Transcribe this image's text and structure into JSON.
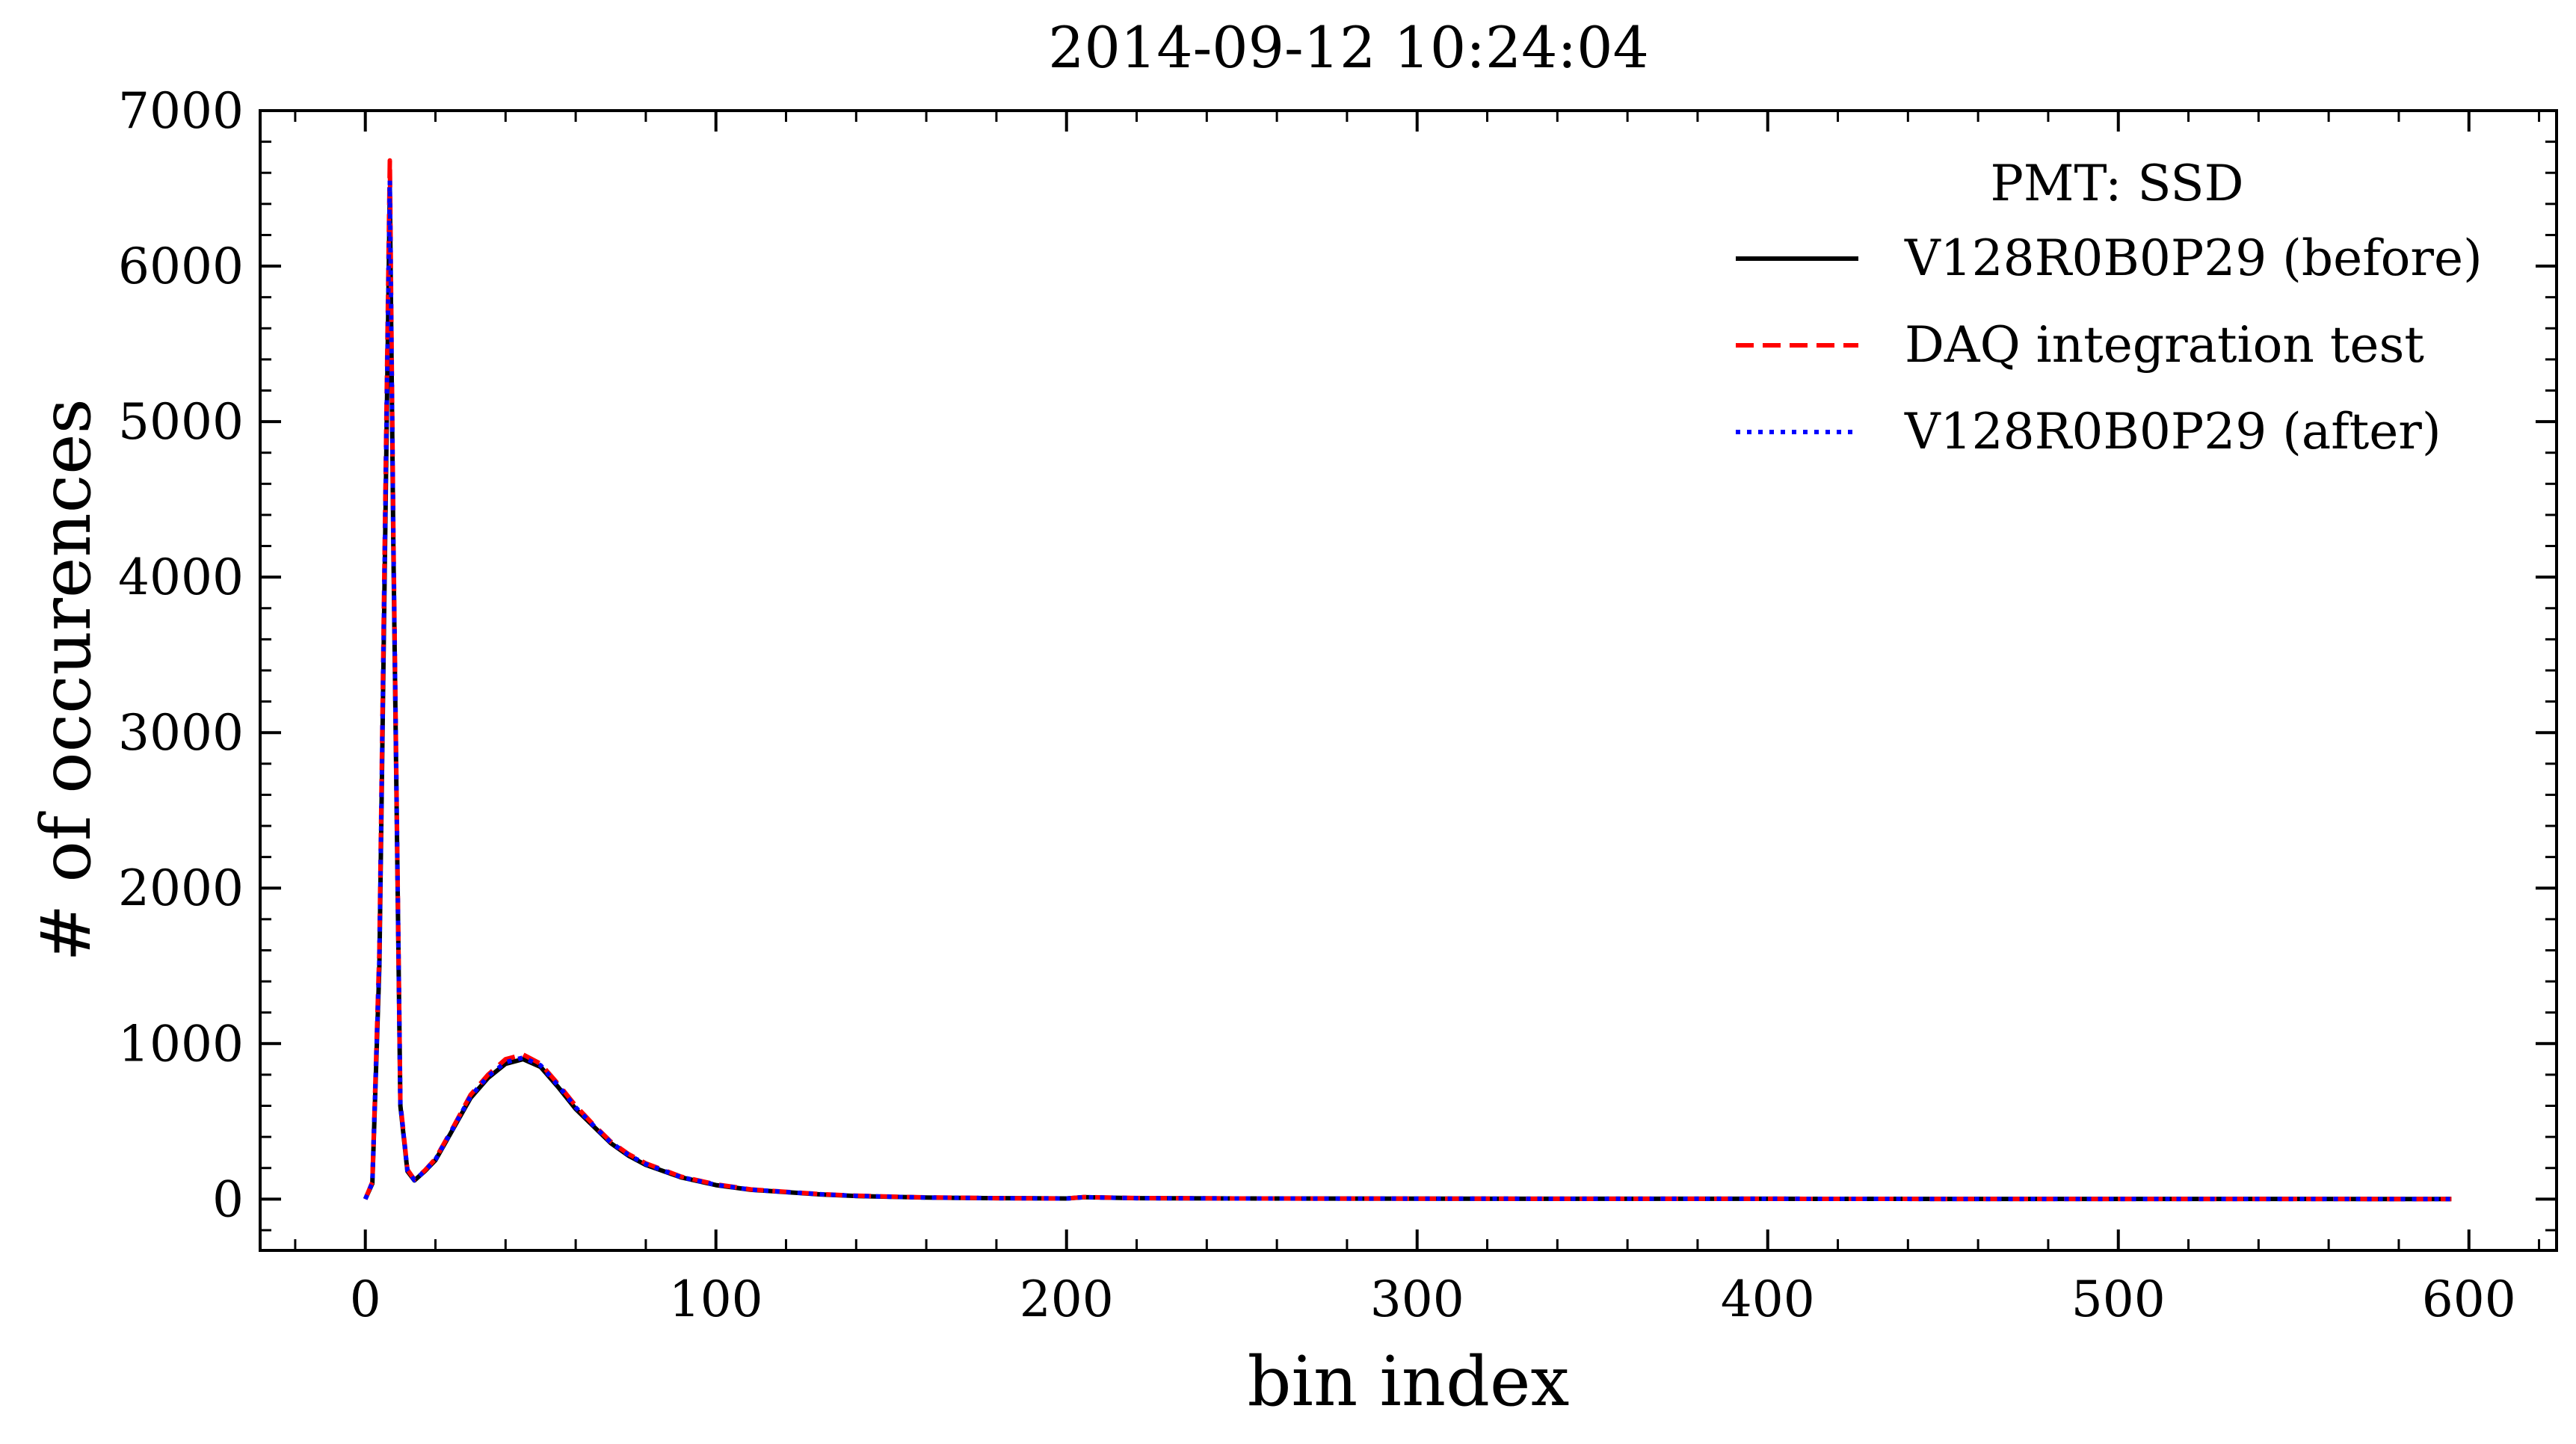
{
  "chart_data": {
    "type": "line",
    "title": "2014-09-12 10:24:04",
    "xlabel": "bin index",
    "ylabel": "# of occurences",
    "xlim": [
      -30,
      625
    ],
    "ylim": [
      -330,
      7000
    ],
    "xticks": [
      0,
      100,
      200,
      300,
      400,
      500,
      600
    ],
    "yticks": [
      0,
      1000,
      2000,
      3000,
      4000,
      5000,
      6000,
      7000
    ],
    "grid": false,
    "legend_title": "PMT: SSD",
    "legend_position": "top-right",
    "series": [
      {
        "name": "V128R0B0P29 (before)",
        "color": "#000000",
        "style": "solid",
        "x": [
          0,
          2,
          4,
          6,
          7,
          8,
          10,
          12,
          14,
          17,
          20,
          25,
          30,
          35,
          40,
          45,
          50,
          55,
          60,
          65,
          70,
          75,
          80,
          90,
          100,
          110,
          120,
          130,
          140,
          150,
          160,
          170,
          180,
          190,
          200,
          205,
          210,
          220,
          250,
          300,
          350,
          400,
          450,
          500,
          550,
          595
        ],
        "y": [
          0,
          100,
          1500,
          4800,
          6500,
          4200,
          600,
          180,
          120,
          180,
          250,
          450,
          650,
          780,
          870,
          900,
          850,
          720,
          580,
          470,
          360,
          280,
          220,
          140,
          90,
          60,
          45,
          30,
          20,
          15,
          10,
          8,
          6,
          5,
          4,
          12,
          10,
          6,
          4,
          3,
          2,
          2,
          1,
          1,
          1,
          0
        ]
      },
      {
        "name": "DAQ integration test",
        "color": "#ff0000",
        "style": "dashed",
        "x": [
          0,
          2,
          4,
          6,
          7,
          8,
          10,
          12,
          14,
          17,
          20,
          25,
          30,
          35,
          40,
          45,
          50,
          55,
          60,
          65,
          70,
          75,
          80,
          90,
          100,
          110,
          120,
          130,
          140,
          150,
          160,
          170,
          180,
          190,
          200,
          205,
          210,
          220,
          250,
          300,
          350,
          400,
          450,
          500,
          550,
          595
        ],
        "y": [
          0,
          110,
          1600,
          5000,
          6680,
          4300,
          620,
          190,
          125,
          185,
          260,
          460,
          670,
          800,
          900,
          930,
          870,
          740,
          600,
          480,
          370,
          290,
          230,
          145,
          95,
          62,
          47,
          32,
          22,
          16,
          11,
          9,
          6,
          5,
          4,
          13,
          11,
          7,
          4,
          3,
          2,
          2,
          1,
          1,
          1,
          0
        ]
      },
      {
        "name": "V128R0B0P29 (after)",
        "color": "#0000ff",
        "style": "dotted",
        "x": [
          0,
          2,
          4,
          6,
          7,
          8,
          10,
          12,
          14,
          17,
          20,
          25,
          30,
          35,
          40,
          45,
          50,
          55,
          60,
          65,
          70,
          75,
          80,
          90,
          100,
          110,
          120,
          130,
          140,
          150,
          160,
          170,
          180,
          190,
          200,
          205,
          210,
          220,
          250,
          300,
          350,
          400,
          450,
          500,
          550,
          595
        ],
        "y": [
          0,
          105,
          1550,
          4900,
          6550,
          4250,
          610,
          185,
          122,
          182,
          255,
          455,
          660,
          790,
          880,
          910,
          860,
          730,
          590,
          475,
          365,
          285,
          225,
          142,
          92,
          61,
          46,
          31,
          21,
          15,
          10,
          8,
          6,
          5,
          4,
          12,
          10,
          6,
          4,
          3,
          2,
          2,
          1,
          1,
          1,
          0
        ]
      }
    ]
  }
}
